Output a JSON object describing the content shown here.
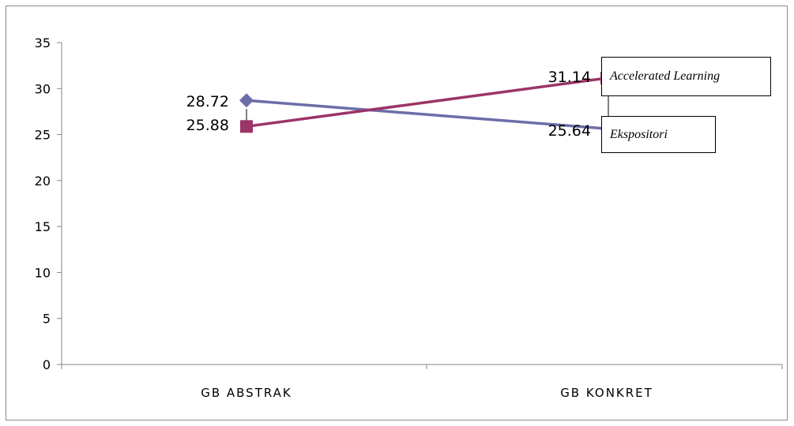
{
  "chart_data": {
    "type": "line",
    "categories": [
      "GB ABSTRAK",
      "GB KONKRET"
    ],
    "ylim": [
      0,
      35
    ],
    "yticks": [
      0,
      5,
      10,
      15,
      20,
      25,
      30,
      35
    ],
    "grid": false,
    "series": [
      {
        "name": "Ekspositori",
        "values": [
          28.72,
          25.64
        ],
        "color": "#6b6ea8",
        "marker": "diamond"
      },
      {
        "name": "Accelerated Learning",
        "values": [
          25.88,
          31.14
        ],
        "color": "#9b3468",
        "marker": "square"
      }
    ],
    "data_labels": [
      "28.72",
      "25.64",
      "25.88",
      "31.14"
    ]
  }
}
